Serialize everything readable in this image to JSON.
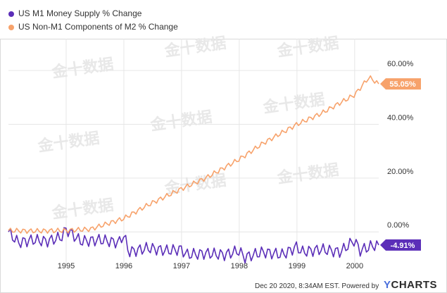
{
  "chart_data": {
    "type": "line",
    "series": [
      {
        "name": "US M1 Money Supply % Change",
        "color": "#5b2eb8",
        "last_label": "-4.91%",
        "points": [
          [
            "1994-01",
            0.0
          ],
          [
            "1994-03",
            -4.0
          ],
          [
            "1994-06",
            -3.0
          ],
          [
            "1994-09",
            -3.5
          ],
          [
            "1994-12",
            -2.0
          ],
          [
            "1995-01",
            1.0
          ],
          [
            "1995-04",
            -3.5
          ],
          [
            "1995-08",
            -3.0
          ],
          [
            "1995-12",
            -4.0
          ],
          [
            "1996-01",
            -1.0
          ],
          [
            "1996-02",
            -7.5
          ],
          [
            "1996-06",
            -6.0
          ],
          [
            "1996-10",
            -7.0
          ],
          [
            "1997-01",
            -6.5
          ],
          [
            "1997-02",
            -8.5
          ],
          [
            "1997-06",
            -8.0
          ],
          [
            "1997-10",
            -8.5
          ],
          [
            "1998-01",
            -7.0
          ],
          [
            "1998-02",
            -9.5
          ],
          [
            "1998-06",
            -7.5
          ],
          [
            "1998-10",
            -8.5
          ],
          [
            "1999-01",
            -5.5
          ],
          [
            "1999-02",
            -7.5
          ],
          [
            "1999-06",
            -6.5
          ],
          [
            "1999-10",
            -7.5
          ],
          [
            "2000-01",
            -3.0
          ],
          [
            "2000-02",
            -7.0
          ],
          [
            "2000-05",
            -5.0
          ],
          [
            "2000-06",
            -4.91
          ]
        ]
      },
      {
        "name": "US Non-M1 Components of M2 % Change",
        "color": "#f7a26b",
        "last_label": "55.05%",
        "points": [
          [
            "1994-01",
            0.5
          ],
          [
            "1994-06",
            0.3
          ],
          [
            "1995-01",
            0.5
          ],
          [
            "1995-06",
            1.0
          ],
          [
            "1996-01",
            5.0
          ],
          [
            "1996-06",
            10.0
          ],
          [
            "1997-01",
            16.0
          ],
          [
            "1997-06",
            20.0
          ],
          [
            "1998-01",
            27.0
          ],
          [
            "1998-06",
            33.0
          ],
          [
            "1999-01",
            40.0
          ],
          [
            "1999-06",
            44.0
          ],
          [
            "2000-01",
            51.0
          ],
          [
            "2000-04",
            57.5
          ],
          [
            "2000-06",
            55.05
          ]
        ]
      }
    ],
    "x_ticks": [
      "1995",
      "1996",
      "1997",
      "1998",
      "1999",
      "2000"
    ],
    "y_ticks": [
      "0.00%",
      "20.00%",
      "40.00%",
      "60.00%"
    ],
    "ylim": [
      -12,
      70
    ],
    "xlim": [
      "1994-01",
      "2000-06"
    ],
    "grid": true,
    "legend_position": "top-left"
  },
  "footer": {
    "timestamp": "Dec 20 2020, 8:34AM EST.",
    "powered": "Powered by",
    "brand_y": "Y",
    "brand_rest": "CHARTS"
  },
  "watermark": "金十数据"
}
